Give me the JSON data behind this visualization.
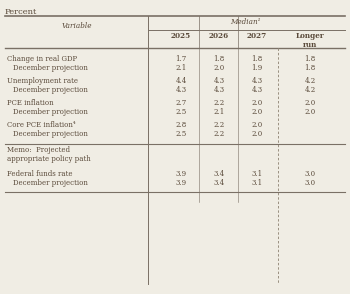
{
  "title": "Percent",
  "header_group": "Median¹",
  "col_headers": [
    "2025",
    "2026",
    "2027",
    "Longer\nrun"
  ],
  "row_label_header": "Variable",
  "rows": [
    {
      "label": "Change in real GDP",
      "sub_label": "   December projection",
      "values": [
        "1.7",
        "1.8",
        "1.8",
        "1.8"
      ],
      "sub_values": [
        "2.1",
        "2.0",
        "1.9",
        "1.8"
      ]
    },
    {
      "label": "Unemployment rate",
      "sub_label": "   December projection",
      "values": [
        "4.4",
        "4.3",
        "4.3",
        "4.2"
      ],
      "sub_values": [
        "4.3",
        "4.3",
        "4.3",
        "4.2"
      ]
    },
    {
      "label": "PCE inflation",
      "sub_label": "   December projection",
      "values": [
        "2.7",
        "2.2",
        "2.0",
        "2.0"
      ],
      "sub_values": [
        "2.5",
        "2.1",
        "2.0",
        "2.0"
      ]
    },
    {
      "label": "Core PCE inflation⁴",
      "sub_label": "   December projection",
      "values": [
        "2.8",
        "2.2",
        "2.0",
        ""
      ],
      "sub_values": [
        "2.5",
        "2.2",
        "2.0",
        ""
      ]
    }
  ],
  "memo_label1": "Memo:  Projected",
  "memo_label2": "appropriate policy path",
  "memo_rows": [
    {
      "label": "Federal funds rate",
      "sub_label": "   December projection",
      "values": [
        "3.9",
        "3.4",
        "3.1",
        "3.0"
      ],
      "sub_values": [
        "3.9",
        "3.4",
        "3.1",
        "3.0"
      ]
    }
  ],
  "bg_color": "#f0ede4",
  "text_color": "#5a4a3a",
  "line_color": "#7a7065",
  "dashed_color": "#9a9080"
}
